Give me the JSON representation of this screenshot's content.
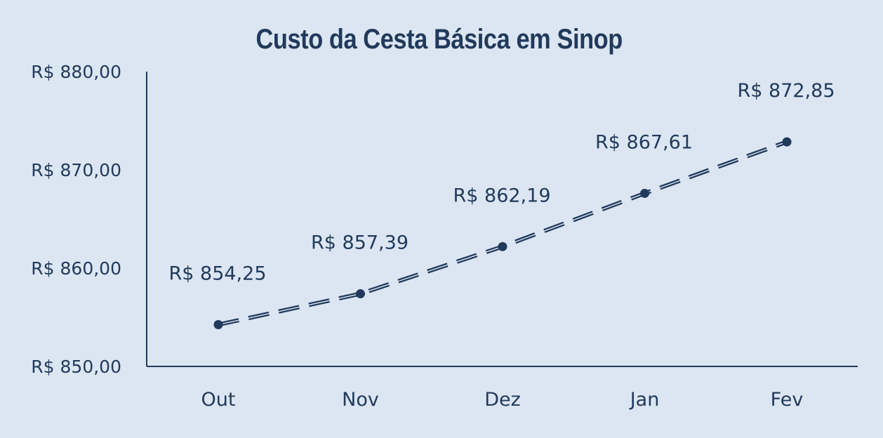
{
  "chart_data": {
    "type": "line",
    "title": "Custo da Cesta Básica em Sinop",
    "xlabel": "",
    "ylabel": "",
    "categories": [
      "Out",
      "Nov",
      "Dez",
      "Jan",
      "Fev"
    ],
    "series": [
      {
        "values": [
          854.25,
          857.39,
          862.19,
          867.61,
          872.85
        ],
        "data_labels": [
          "R$ 854,25",
          "R$ 857,39",
          "R$ 862,19",
          "R$ 867,61",
          "R$ 872,85"
        ]
      }
    ],
    "ylim": [
      850,
      880
    ],
    "yticks": [
      850,
      860,
      870,
      880
    ],
    "ytick_labels": [
      "R$ 850,00",
      "R$ 860,00",
      "R$ 870,00",
      "R$ 880,00"
    ],
    "line_style": "dashed",
    "markers": true,
    "grid": false,
    "legend": "none",
    "colors": {
      "background": "#dce6f2",
      "line": "#213a5c",
      "text": "#213a5c"
    }
  }
}
